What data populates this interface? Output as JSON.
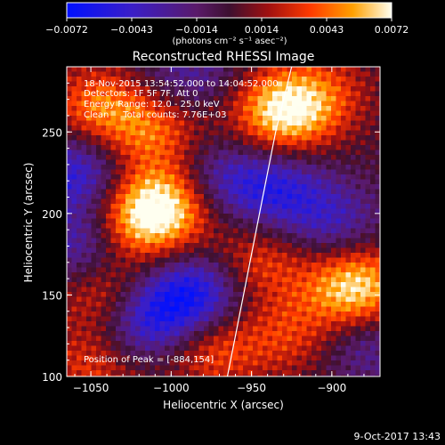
{
  "colorbar": {
    "ticks": [
      "-0.0072",
      "-0.0043",
      "-0.0014",
      "0.0014",
      "0.0043",
      "0.0072"
    ],
    "unit_label": "(photons cm⁻² s⁻¹ asec⁻²)",
    "range": [
      -0.0072,
      0.0072
    ]
  },
  "chart_data": {
    "type": "heatmap",
    "title": "Reconstructed RHESSI Image",
    "xlabel": "Heliocentric X (arcsec)",
    "ylabel": "Heliocentric Y (arcsec)",
    "xlim": [
      -1065,
      -870
    ],
    "ylim": [
      100,
      290
    ],
    "x_ticks": [
      "-1050",
      "-1000",
      "-950",
      "-900"
    ],
    "y_ticks": [
      "100",
      "150",
      "200",
      "250"
    ],
    "annotations": [
      "18-Nov-2015 13:54:52.000 to 14:04:52.000",
      "Detectors: 1F 5F 7F, Att 0",
      "Energy Range: 12.0 - 25.0 keV",
      "Clean     Total counts: 7.76E+03"
    ],
    "peak_label": "Position of Peak = [-884,154]",
    "peak": [
      -884,
      154
    ],
    "limb_curve": [
      [
        -965,
        100
      ],
      [
        -955,
        150
      ],
      [
        -945,
        200
      ],
      [
        -935,
        250
      ],
      [
        -925,
        290
      ]
    ],
    "blobs": [
      {
        "x": -930,
        "y": 262,
        "amp": 0.0072
      },
      {
        "x": -885,
        "y": 154,
        "amp": 0.0072
      },
      {
        "x": -1000,
        "y": 208,
        "amp": 0.006
      },
      {
        "x": -1020,
        "y": 195,
        "amp": 0.0055
      },
      {
        "x": -1045,
        "y": 265,
        "amp": 0.0045
      },
      {
        "x": -1010,
        "y": 250,
        "amp": 0.004
      },
      {
        "x": -1040,
        "y": 150,
        "amp": 0.004
      },
      {
        "x": -975,
        "y": 118,
        "amp": 0.004
      },
      {
        "x": -945,
        "y": 170,
        "amp": 0.0035
      },
      {
        "x": -905,
        "y": 275,
        "amp": 0.0025
      },
      {
        "x": -925,
        "y": 125,
        "amp": 0.003
      },
      {
        "x": -1050,
        "y": 105,
        "amp": 0.003
      },
      {
        "x": -1015,
        "y": 135,
        "amp": -0.0055
      },
      {
        "x": -985,
        "y": 150,
        "amp": -0.006
      },
      {
        "x": -1060,
        "y": 225,
        "amp": -0.005
      },
      {
        "x": -975,
        "y": 220,
        "amp": -0.004
      },
      {
        "x": -935,
        "y": 215,
        "amp": -0.0045
      },
      {
        "x": -1055,
        "y": 180,
        "amp": -0.004
      },
      {
        "x": -900,
        "y": 195,
        "amp": -0.0035
      },
      {
        "x": -990,
        "y": 285,
        "amp": -0.003
      },
      {
        "x": -880,
        "y": 120,
        "amp": -0.003
      }
    ]
  },
  "footer": {
    "timestamp": "9-Oct-2017 13:43"
  }
}
